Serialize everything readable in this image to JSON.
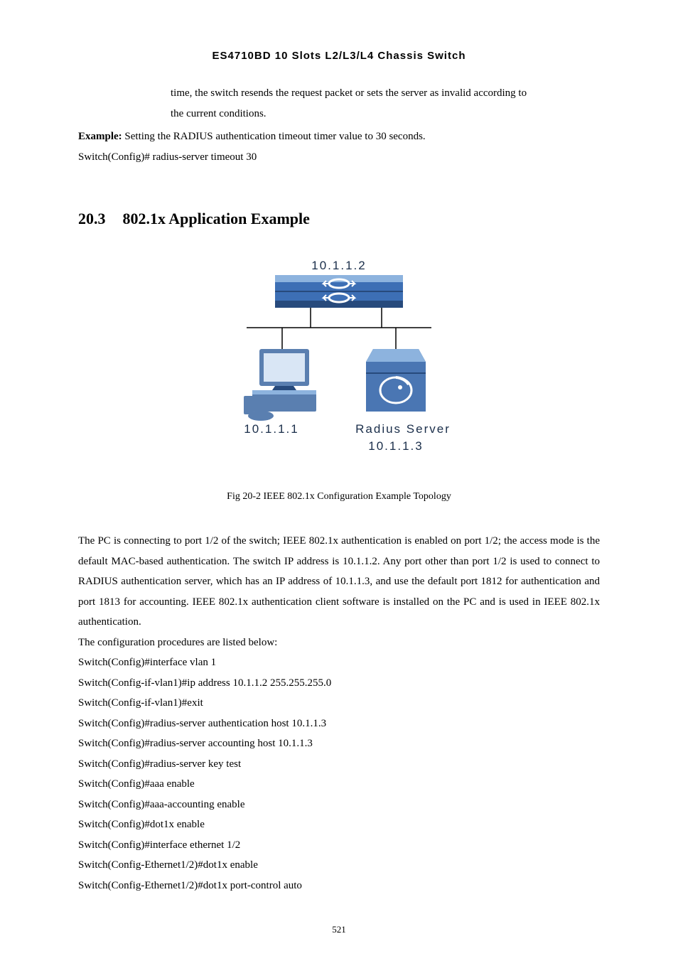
{
  "header": {
    "product_title": "ES4710BD 10 Slots L2/L3/L4 Chassis Switch"
  },
  "intro": {
    "cont_line1": "time, the switch resends the request packet or sets the server as invalid according to",
    "cont_line2": "the current conditions.",
    "example_label": "Example:",
    "example_text": " Setting the RADIUS authentication timeout timer value to 30 seconds.",
    "example_cmd": "Switch(Config)# radius-server timeout 30"
  },
  "section": {
    "number": "20.3",
    "title": "802.1x Application Example"
  },
  "figure": {
    "switch_ip": "10.1.1.2",
    "pc_ip": "10.1.1.1",
    "radius_label": "Radius Server",
    "radius_ip": "10.1.1.3",
    "caption": "Fig 20-2 IEEE 802.1x Configuration Example Topology",
    "colors": {
      "switch_body": "#3d6fb5",
      "switch_dark": "#274a7c",
      "switch_light": "#8db3de",
      "pc_body": "#5a7fb0",
      "pc_screen": "#d9e6f5",
      "server_body": "#4a76b3",
      "label_text": "#1a2e4a"
    }
  },
  "description": "The PC is connecting to port 1/2 of the switch; IEEE 802.1x authentication is enabled on port 1/2; the access mode is the default MAC-based authentication. The switch IP address is 10.1.1.2. Any port other than port 1/2 is used to connect to RADIUS authentication server, which has an IP address of 10.1.1.3, and use the default port 1812 for authentication and port 1813 for accounting. IEEE 802.1x authentication client software is installed on the PC and is used in IEEE 802.1x authentication.",
  "config_intro": "The configuration procedures are listed below:",
  "config_lines": [
    "Switch(Config)#interface vlan 1",
    "Switch(Config-if-vlan1)#ip address 10.1.1.2 255.255.255.0",
    "Switch(Config-if-vlan1)#exit",
    "Switch(Config)#radius-server authentication host 10.1.1.3",
    "Switch(Config)#radius-server accounting host 10.1.1.3",
    "Switch(Config)#radius-server key test",
    "Switch(Config)#aaa enable",
    "Switch(Config)#aaa-accounting enable",
    "Switch(Config)#dot1x enable",
    "Switch(Config)#interface ethernet 1/2",
    "Switch(Config-Ethernet1/2)#dot1x enable",
    "Switch(Config-Ethernet1/2)#dot1x port-control auto"
  ],
  "page_number": "521"
}
